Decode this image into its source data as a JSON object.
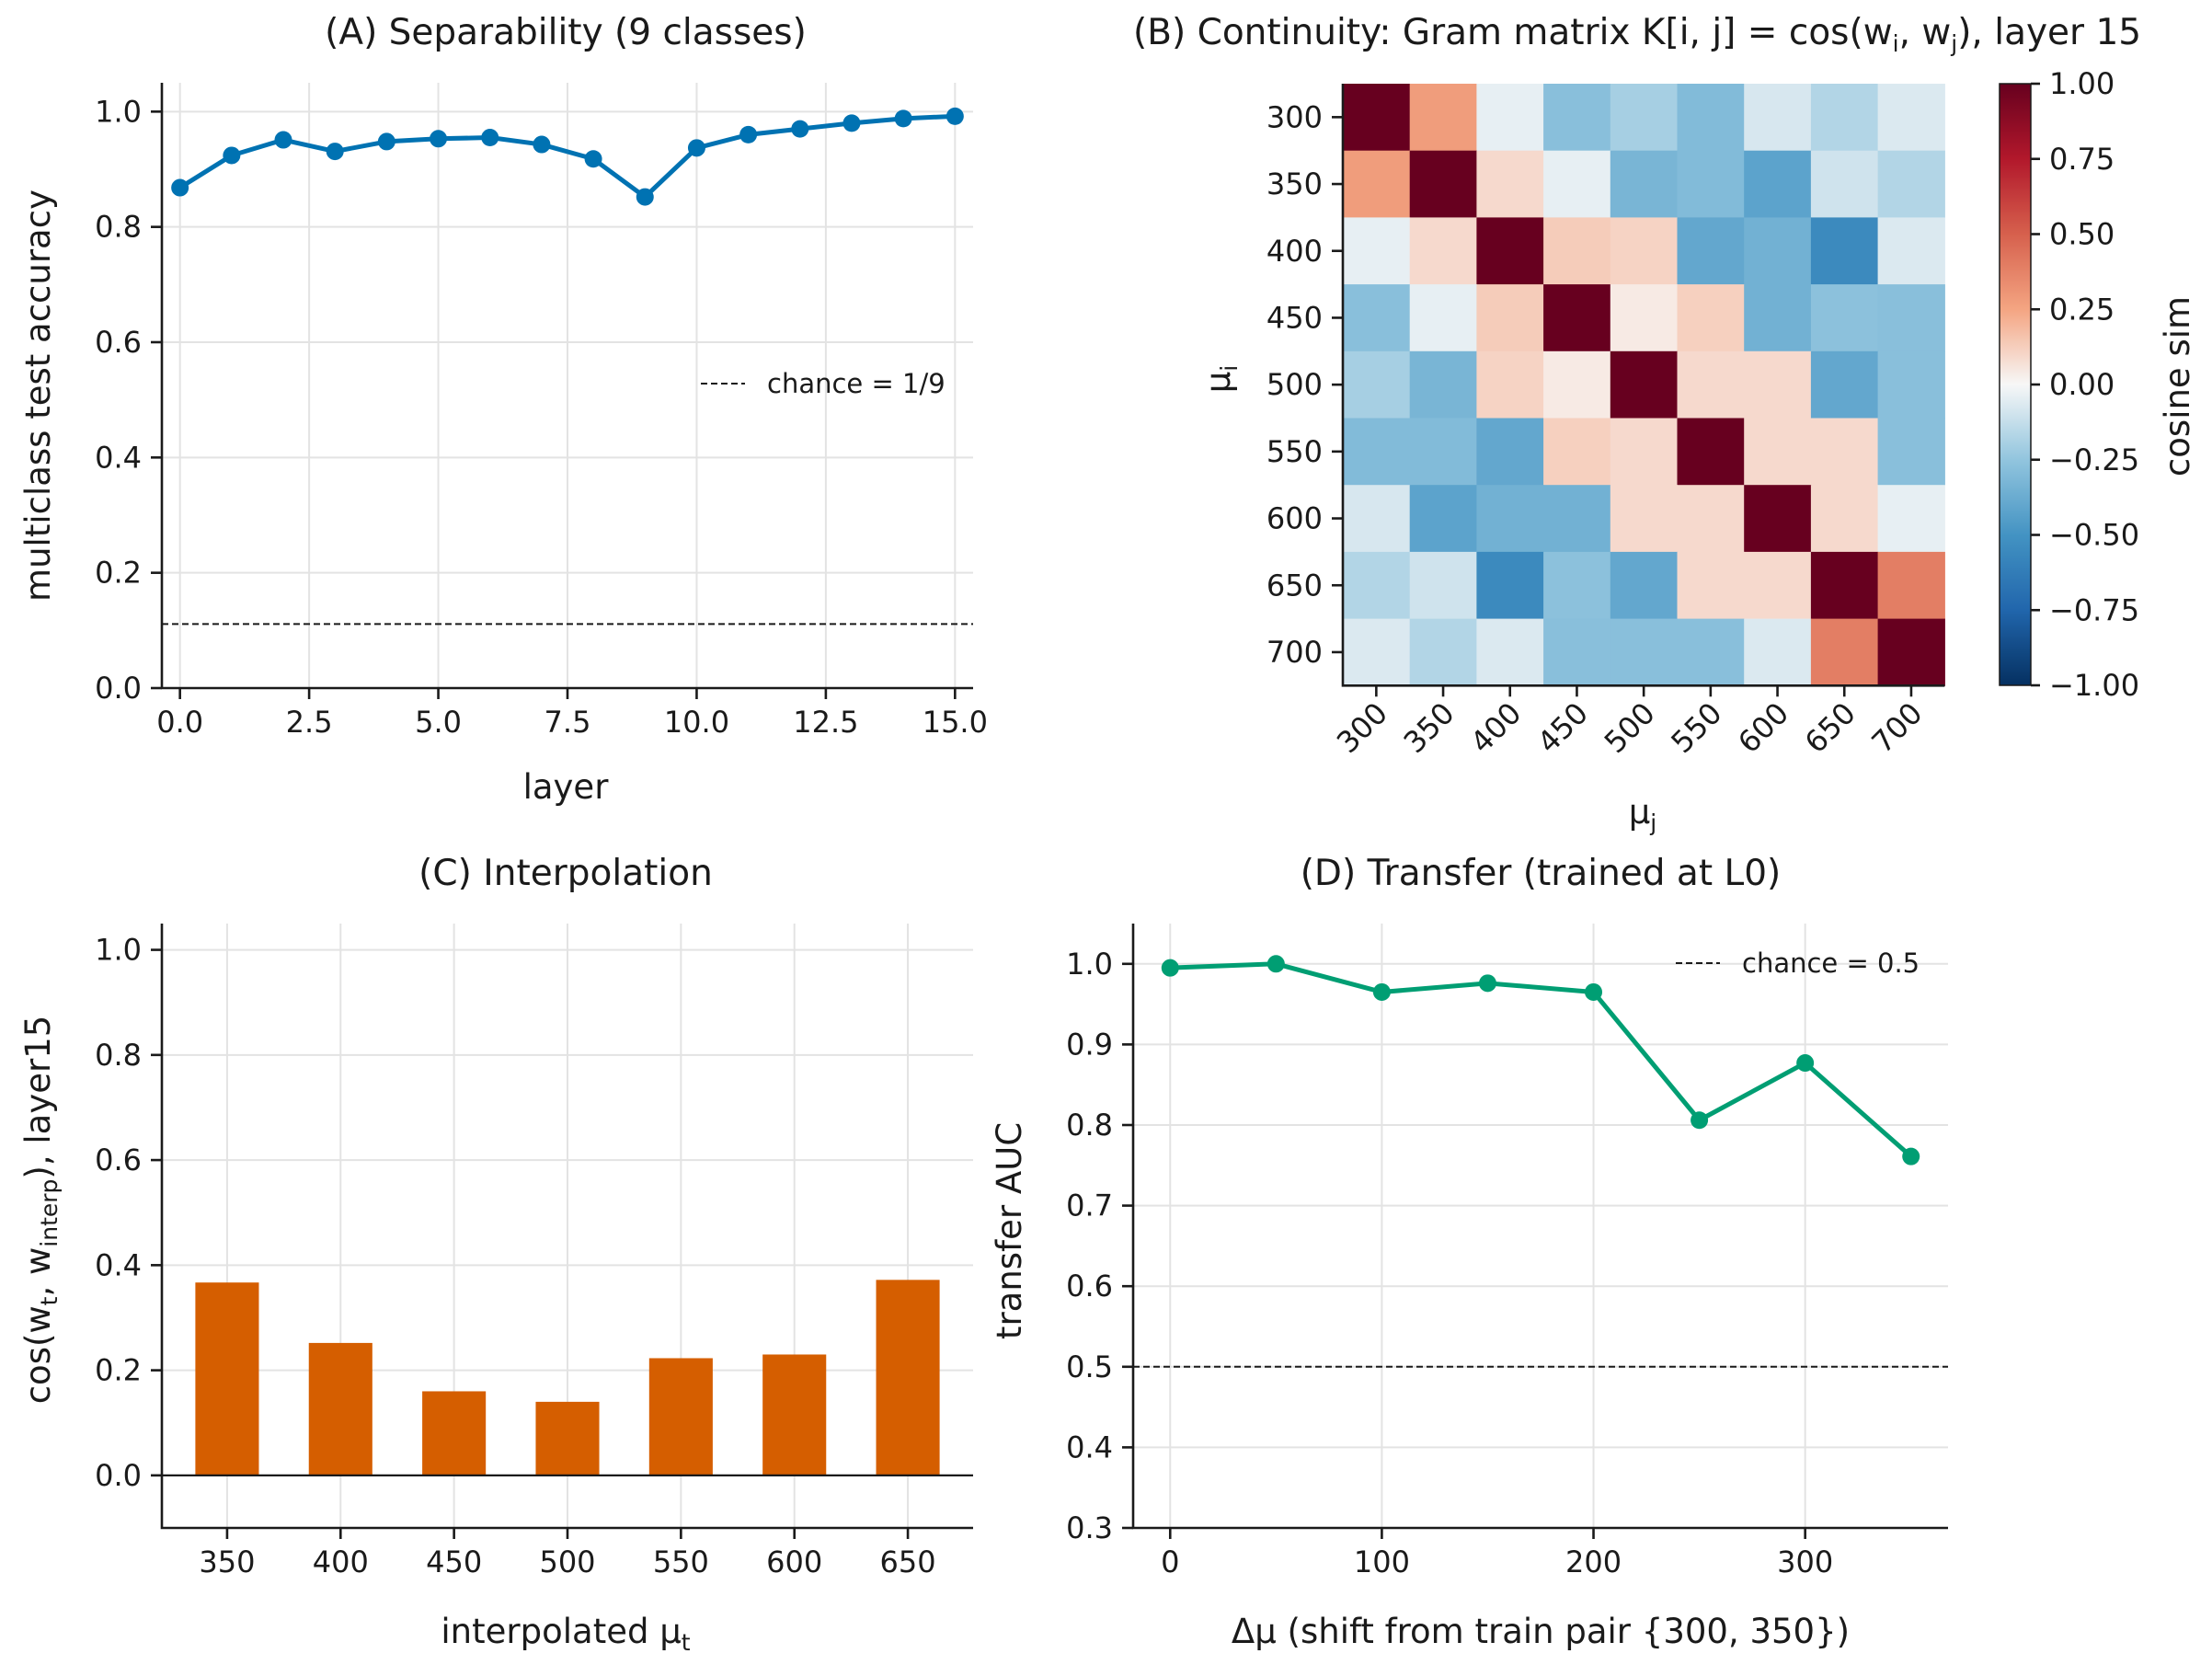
{
  "panels": {
    "A": {
      "title": "(A) Separability (9 classes)",
      "xlabel": "layer",
      "ylabel": "multiclass test accuracy",
      "legend": "chance = 1/9"
    },
    "B": {
      "title_main": "(B) Continuity: Gram matrix K[i, j] = cos(w",
      "title_sub_i": "i",
      "title_mid": ", w",
      "title_sub_j": "j",
      "title_end": "),  layer 15",
      "ylabel_main": "μ",
      "ylabel_sub": "i",
      "xlabel_main": "μ",
      "xlabel_sub": "j",
      "colorbar_label": "cosine sim"
    },
    "C": {
      "title": "(C) Interpolation",
      "xlabel_main": "interpolated μ",
      "xlabel_sub": "t",
      "ylabel_p1": "cos(w",
      "ylabel_sub1": "t",
      "ylabel_p2": ", w",
      "ylabel_sub2": "interp",
      "ylabel_p3": "), layer15"
    },
    "D": {
      "title": "(D) Transfer (trained at L0)",
      "xlabel": "Δμ (shift from train pair {300, 350})",
      "ylabel": "transfer AUC",
      "legend": "chance = 0.5"
    }
  },
  "chart_data": [
    {
      "id": "A",
      "type": "line",
      "title": "(A) Separability (9 classes)",
      "xlabel": "layer",
      "ylabel": "multiclass test accuracy",
      "x": [
        0,
        1,
        2,
        3,
        4,
        5,
        6,
        7,
        8,
        9,
        10,
        11,
        12,
        13,
        14,
        15
      ],
      "series": [
        {
          "values": [
            0.868,
            0.924,
            0.951,
            0.931,
            0.948,
            0.953,
            0.955,
            0.943,
            0.918,
            0.852,
            0.937,
            0.96,
            0.97,
            0.98,
            0.988,
            0.992
          ],
          "color": "#0072b2"
        }
      ],
      "reference_lines": [
        {
          "y": 0.1111,
          "label": "chance = 1/9",
          "style": "dashed"
        }
      ],
      "xlim": [
        -0.35,
        15.35
      ],
      "ylim": [
        0,
        1.05
      ],
      "xticks": [
        "0.0",
        "2.5",
        "5.0",
        "7.5",
        "10.0",
        "12.5",
        "15.0"
      ],
      "xtick_values": [
        0,
        2.5,
        5,
        7.5,
        10,
        12.5,
        15
      ],
      "yticks": [
        "0.0",
        "0.2",
        "0.4",
        "0.6",
        "0.8",
        "1.0"
      ],
      "ytick_values": [
        0,
        0.2,
        0.4,
        0.6,
        0.8,
        1.0
      ],
      "grid": true,
      "legend_position": "center-right"
    },
    {
      "id": "B",
      "type": "heatmap",
      "row_labels": [
        "300",
        "350",
        "400",
        "450",
        "500",
        "550",
        "600",
        "650",
        "700"
      ],
      "col_labels": [
        "300",
        "350",
        "400",
        "450",
        "500",
        "550",
        "600",
        "650",
        "700"
      ],
      "values": [
        [
          1.0,
          0.28,
          -0.04,
          -0.28,
          -0.2,
          -0.3,
          -0.08,
          -0.17,
          -0.07
        ],
        [
          0.28,
          1.0,
          0.09,
          -0.04,
          -0.33,
          -0.3,
          -0.42,
          -0.1,
          -0.17
        ],
        [
          -0.04,
          0.09,
          1.0,
          0.13,
          0.11,
          -0.4,
          -0.35,
          -0.55,
          -0.07
        ],
        [
          -0.28,
          -0.04,
          0.13,
          1.0,
          0.04,
          0.12,
          -0.35,
          -0.27,
          -0.28
        ],
        [
          -0.2,
          -0.33,
          0.11,
          0.04,
          1.0,
          0.09,
          0.09,
          -0.4,
          -0.28
        ],
        [
          -0.3,
          -0.3,
          -0.4,
          0.12,
          0.09,
          1.0,
          0.09,
          0.09,
          -0.28
        ],
        [
          -0.08,
          -0.42,
          -0.35,
          -0.35,
          0.09,
          0.09,
          1.0,
          0.09,
          -0.04
        ],
        [
          -0.17,
          -0.1,
          -0.55,
          -0.27,
          -0.4,
          0.09,
          0.09,
          1.0,
          0.39
        ],
        [
          -0.07,
          -0.17,
          -0.07,
          -0.28,
          -0.28,
          -0.28,
          -0.07,
          0.39,
          1.0
        ]
      ],
      "vmin": -1.0,
      "vmax": 1.0,
      "colormap": "RdBu_r",
      "colorbar_label": "cosine sim",
      "colorbar_ticks": [
        "−1.00",
        "−0.75",
        "−0.50",
        "−0.25",
        "0.00",
        "0.25",
        "0.50",
        "0.75",
        "1.00"
      ],
      "colorbar_tick_values": [
        -1,
        -0.75,
        -0.5,
        -0.25,
        0,
        0.25,
        0.5,
        0.75,
        1
      ]
    },
    {
      "id": "C",
      "type": "bar",
      "title": "(C) Interpolation",
      "categories": [
        "350",
        "400",
        "450",
        "500",
        "550",
        "600",
        "650"
      ],
      "values": [
        0.367,
        0.252,
        0.16,
        0.14,
        0.223,
        0.23,
        0.372
      ],
      "color": "#d55e00",
      "ylim": [
        -0.1,
        1.05
      ],
      "yticks": [
        "0.0",
        "0.2",
        "0.4",
        "0.6",
        "0.8",
        "1.0"
      ],
      "ytick_values": [
        0,
        0.2,
        0.4,
        0.6,
        0.8,
        1.0
      ],
      "zero_line": true,
      "grid": true
    },
    {
      "id": "D",
      "type": "line",
      "title": "(D) Transfer (trained at L0)",
      "xlabel": "Δμ (shift from train pair {300, 350})",
      "ylabel": "transfer AUC",
      "x": [
        0,
        50,
        100,
        150,
        200,
        250,
        300,
        350
      ],
      "series": [
        {
          "values": [
            0.995,
            1.0,
            0.965,
            0.976,
            0.965,
            0.806,
            0.877,
            0.761
          ],
          "color": "#009e73"
        }
      ],
      "reference_lines": [
        {
          "y": 0.5,
          "label": "chance = 0.5",
          "style": "dashed"
        }
      ],
      "xlim": [
        -17.5,
        367.5
      ],
      "ylim": [
        0.3,
        1.05
      ],
      "xticks": [
        "0",
        "100",
        "200",
        "300"
      ],
      "xtick_values": [
        0,
        100,
        200,
        300
      ],
      "yticks": [
        "0.3",
        "0.4",
        "0.5",
        "0.6",
        "0.7",
        "0.8",
        "0.9",
        "1.0"
      ],
      "ytick_values": [
        0.3,
        0.4,
        0.5,
        0.6,
        0.7,
        0.8,
        0.9,
        1.0
      ],
      "grid": true,
      "legend_position": "top-right"
    }
  ]
}
